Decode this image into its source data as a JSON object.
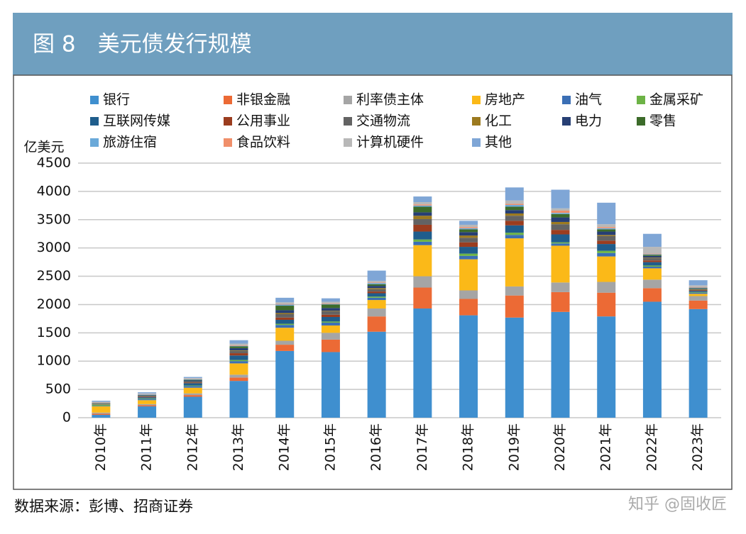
{
  "chart_data": {
    "type": "bar",
    "stacked": true,
    "title": "图 8　美元债发行规模",
    "y_label": "亿美元",
    "source": "数据来源：彭博、招商证券",
    "watermark": "知乎 @固收匠",
    "categories": [
      "2010年",
      "2011年",
      "2012年",
      "2013年",
      "2014年",
      "2015年",
      "2016年",
      "2017年",
      "2018年",
      "2019年",
      "2020年",
      "2021年",
      "2022年",
      "2023年"
    ],
    "ylim": [
      0,
      4500
    ],
    "yticks": [
      0,
      500,
      1000,
      1500,
      2000,
      2500,
      3000,
      3500,
      4000,
      4500
    ],
    "grid": true,
    "series": [
      {
        "name": "银行",
        "color": "#3f8fcf",
        "values": [
          50,
          200,
          370,
          650,
          1180,
          1160,
          1520,
          1930,
          1810,
          1770,
          1870,
          1790,
          2050,
          1920
        ]
      },
      {
        "name": "非银金融",
        "color": "#ec6a35",
        "values": [
          20,
          20,
          30,
          60,
          110,
          220,
          270,
          370,
          290,
          390,
          350,
          420,
          240,
          150
        ]
      },
      {
        "name": "利率债主体",
        "color": "#a5a5a5",
        "values": [
          20,
          20,
          30,
          50,
          70,
          120,
          140,
          200,
          150,
          160,
          170,
          190,
          150,
          80
        ]
      },
      {
        "name": "房地产",
        "color": "#fbb918",
        "values": [
          110,
          70,
          100,
          200,
          230,
          130,
          150,
          550,
          550,
          850,
          650,
          450,
          200,
          40
        ]
      },
      {
        "name": "油气",
        "color": "#3b6fb5",
        "values": [
          10,
          20,
          30,
          40,
          50,
          50,
          40,
          60,
          60,
          60,
          40,
          60,
          30,
          20
        ]
      },
      {
        "name": "金属采矿",
        "color": "#6db346",
        "values": [
          20,
          10,
          10,
          20,
          20,
          20,
          20,
          40,
          40,
          40,
          20,
          40,
          20,
          10
        ]
      },
      {
        "name": "互联网传媒",
        "color": "#1f5d8c",
        "values": [
          5,
          20,
          40,
          80,
          70,
          80,
          60,
          140,
          120,
          130,
          140,
          120,
          60,
          20
        ]
      },
      {
        "name": "公用事业",
        "color": "#9b3d1f",
        "values": [
          5,
          10,
          10,
          40,
          40,
          40,
          30,
          120,
          80,
          80,
          80,
          60,
          30,
          10
        ]
      },
      {
        "name": "交通物流",
        "color": "#636363",
        "values": [
          5,
          10,
          15,
          40,
          60,
          60,
          40,
          100,
          80,
          90,
          100,
          80,
          40,
          10
        ]
      },
      {
        "name": "化工",
        "color": "#9c7a1f",
        "values": [
          5,
          5,
          5,
          10,
          20,
          10,
          20,
          60,
          40,
          40,
          40,
          20,
          10,
          10
        ]
      },
      {
        "name": "电力",
        "color": "#273f74",
        "values": [
          5,
          10,
          20,
          40,
          50,
          50,
          40,
          60,
          60,
          60,
          80,
          60,
          30,
          10
        ]
      },
      {
        "name": "零售",
        "color": "#3c6b2a",
        "values": [
          5,
          5,
          10,
          30,
          80,
          60,
          30,
          100,
          50,
          60,
          60,
          40,
          20,
          10
        ]
      },
      {
        "name": "旅游住宿",
        "color": "#6aa9d9",
        "values": [
          5,
          10,
          10,
          10,
          20,
          10,
          20,
          20,
          20,
          30,
          20,
          20,
          10,
          10
        ]
      },
      {
        "name": "食品饮料",
        "color": "#f08f6a",
        "values": [
          5,
          5,
          5,
          10,
          10,
          10,
          10,
          20,
          20,
          20,
          40,
          20,
          10,
          10
        ]
      },
      {
        "name": "计算机硬件",
        "color": "#b8b8b8",
        "values": [
          10,
          15,
          15,
          30,
          30,
          30,
          30,
          40,
          40,
          60,
          40,
          50,
          120,
          30
        ]
      },
      {
        "name": "其他",
        "color": "#7fa6d6",
        "values": [
          20,
          20,
          20,
          60,
          80,
          60,
          180,
          100,
          70,
          230,
          330,
          380,
          230,
          90
        ]
      }
    ]
  }
}
